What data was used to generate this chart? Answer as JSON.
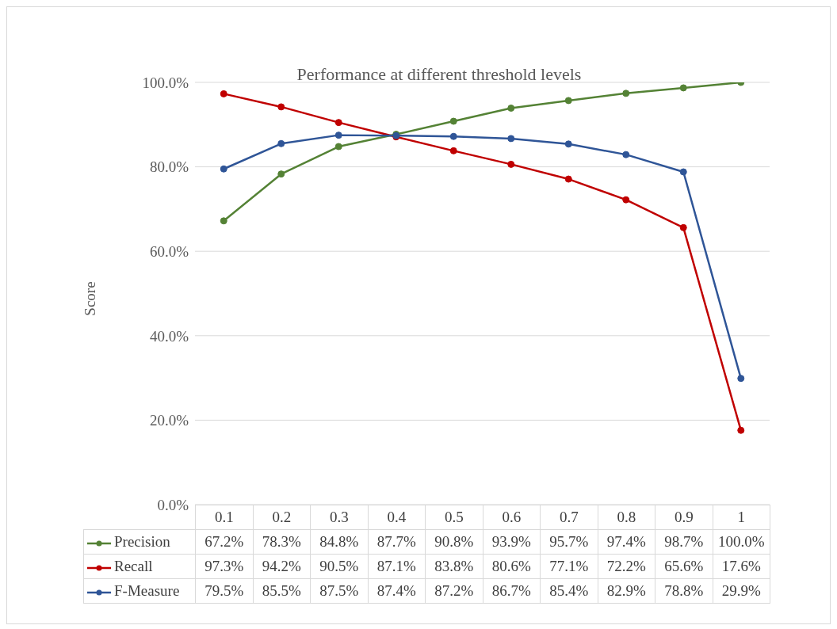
{
  "chart_data": {
    "type": "line",
    "title": "Performance at different threshold levels",
    "ylabel": "Score",
    "categories": [
      "0.1",
      "0.2",
      "0.3",
      "0.4",
      "0.5",
      "0.6",
      "0.7",
      "0.8",
      "0.9",
      "1"
    ],
    "series": [
      {
        "name": "Precision",
        "color": "#548235",
        "values": [
          67.2,
          78.3,
          84.8,
          87.7,
          90.8,
          93.9,
          95.7,
          97.4,
          98.7,
          100.0
        ],
        "value_labels": [
          "67.2%",
          "78.3%",
          "84.8%",
          "87.7%",
          "90.8%",
          "93.9%",
          "95.7%",
          "97.4%",
          "98.7%",
          "100.0%"
        ]
      },
      {
        "name": "Recall",
        "color": "#c00000",
        "values": [
          97.3,
          94.2,
          90.5,
          87.1,
          83.8,
          80.6,
          77.1,
          72.2,
          65.6,
          17.6
        ],
        "value_labels": [
          "97.3%",
          "94.2%",
          "90.5%",
          "87.1%",
          "83.8%",
          "80.6%",
          "77.1%",
          "72.2%",
          "65.6%",
          "17.6%"
        ]
      },
      {
        "name": "F-Measure",
        "color": "#2f5597",
        "values": [
          79.5,
          85.5,
          87.5,
          87.4,
          87.2,
          86.7,
          85.4,
          82.9,
          78.8,
          29.9
        ],
        "value_labels": [
          "79.5%",
          "85.5%",
          "87.5%",
          "87.4%",
          "87.2%",
          "86.7%",
          "85.4%",
          "82.9%",
          "78.8%",
          "29.9%"
        ]
      }
    ],
    "ylim": [
      0,
      100
    ],
    "yticks": [
      {
        "value": 0,
        "label": "0.0%"
      },
      {
        "value": 20,
        "label": "20.0%"
      },
      {
        "value": 40,
        "label": "40.0%"
      },
      {
        "value": 60,
        "label": "60.0%"
      },
      {
        "value": 80,
        "label": "80.0%"
      },
      {
        "value": 100,
        "label": "100.0%"
      }
    ],
    "grid": "y",
    "legend": "bottom",
    "marker": "circle",
    "line_style": "solid"
  }
}
